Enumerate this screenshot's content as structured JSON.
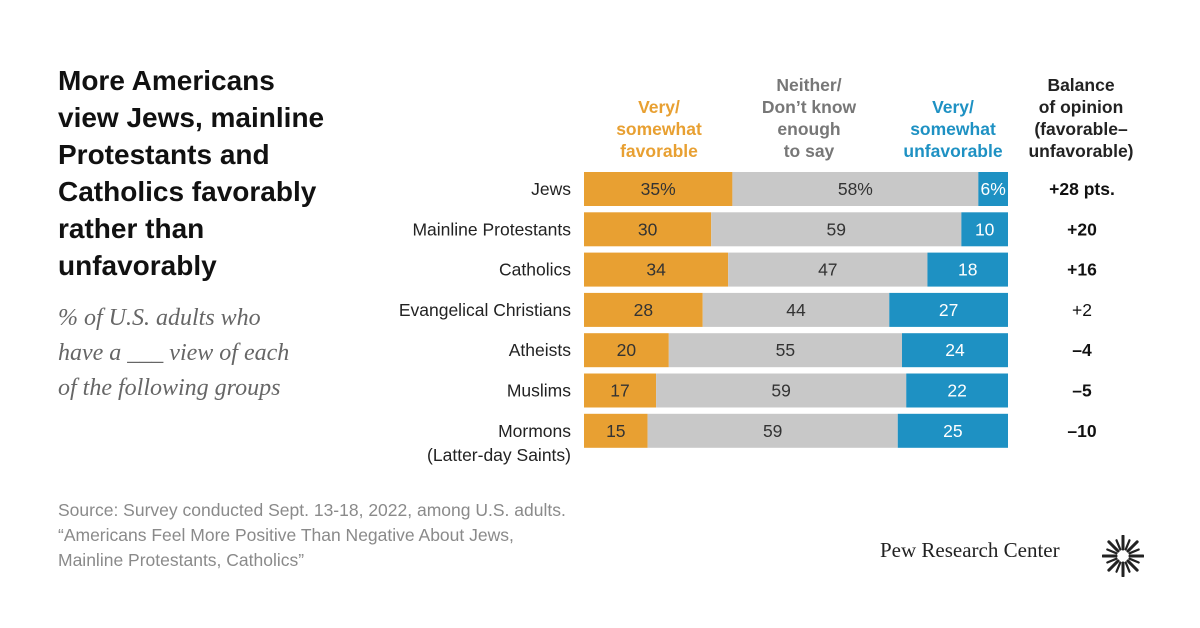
{
  "title": "More Americans view Jews, mainline Protestants and Catholics favorably rather than unfavorably",
  "title_lines": [
    "More Americans",
    "view Jews, mainline",
    "Protestants and",
    "Catholics favorably",
    "rather than",
    "unfavorably"
  ],
  "subtitle": "% of U.S. adults who have a ___ view of each of the following groups",
  "subtitle_lines": [
    "% of U.S. adults who",
    "have a ___ view of each",
    "of the following groups"
  ],
  "source_lines": [
    "Source: Survey conducted Sept. 13-18, 2022, among U.S. adults.",
    "“Americans Feel More Positive Than Negative About Jews,",
    "Mainline Protestants, Catholics”"
  ],
  "brand": "Pew Research Center",
  "colors": {
    "favorable": "#E8A032",
    "neutral": "#C8C8C8",
    "unfavorable": "#1E91C3",
    "favorable_text": "#E8A032",
    "neutral_text": "#777777",
    "unfavorable_text": "#1E91C3"
  },
  "chart_data": {
    "type": "bar",
    "orientation": "horizontal",
    "stacked": true,
    "title": "More Americans view Jews, mainline Protestants and Catholics favorably rather than unfavorably",
    "unit": "%",
    "xlim": [
      0,
      100
    ],
    "categories": [
      [
        "Jews"
      ],
      [
        "Mainline Protestants"
      ],
      [
        "Catholics"
      ],
      [
        "Evangelical Christians"
      ],
      [
        "Atheists"
      ],
      [
        "Muslims"
      ],
      [
        "Mormons",
        "(Latter-day Saints)"
      ]
    ],
    "series": [
      {
        "key": "favorable",
        "name": "Very/ somewhat favorable",
        "header_lines": [
          "Very/",
          "somewhat",
          "favorable"
        ],
        "values": [
          35,
          30,
          34,
          28,
          20,
          17,
          15
        ],
        "labels": [
          "35%",
          "30",
          "34",
          "28",
          "20",
          "17",
          "15"
        ]
      },
      {
        "key": "neutral",
        "name": "Neither/ Don't know enough to say",
        "header_lines": [
          "Neither/",
          "Don’t know",
          "enough",
          "to say"
        ],
        "values": [
          58,
          59,
          47,
          44,
          55,
          59,
          59
        ],
        "labels": [
          "58%",
          "59",
          "47",
          "44",
          "55",
          "59",
          "59"
        ]
      },
      {
        "key": "unfavorable",
        "name": "Very/ somewhat unfavorable",
        "header_lines": [
          "Very/",
          "somewhat",
          "unfavorable"
        ],
        "values": [
          6,
          10,
          18,
          27,
          24,
          22,
          25
        ],
        "labels": [
          "6%",
          "10",
          "18",
          "27",
          "24",
          "22",
          "25"
        ]
      }
    ],
    "balance": {
      "header_lines": [
        "Balance",
        "of opinion",
        "(favorable–",
        "unfavorable)"
      ],
      "values": [
        28,
        20,
        16,
        2,
        -4,
        -5,
        -10
      ],
      "labels": [
        "+28 pts.",
        "+20",
        "+16",
        "+2",
        "–4",
        "–5",
        "–10"
      ],
      "bold": [
        true,
        true,
        true,
        false,
        true,
        true,
        true
      ]
    }
  }
}
